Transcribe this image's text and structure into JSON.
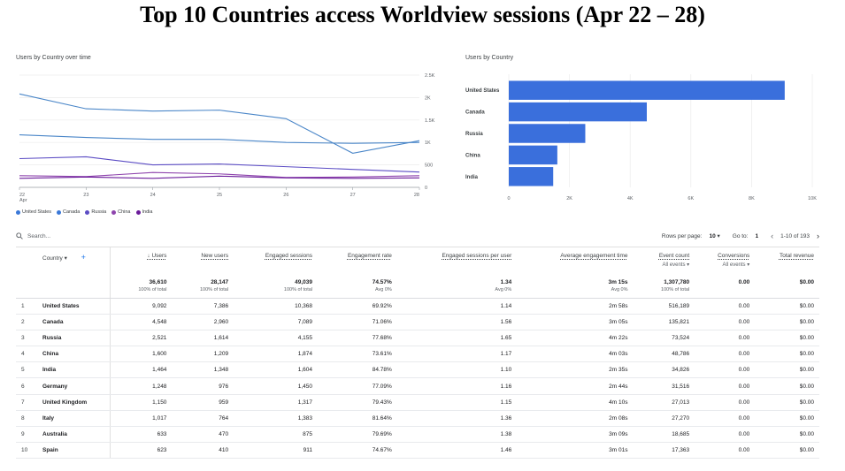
{
  "title": "Top 10 Countries access Worldview sessions (Apr 22 – 28)",
  "line_chart_title": "Users by Country over time",
  "bar_chart_title": "Users by Country",
  "chart_data": [
    {
      "type": "line",
      "x": [
        "22",
        "23",
        "24",
        "25",
        "26",
        "27",
        "28"
      ],
      "x_sublabel": "Apr",
      "y_ticks": [
        "2.5K",
        "2K",
        "1.5K",
        "1K",
        "500",
        "0"
      ],
      "ylim": [
        0,
        2500
      ],
      "grid": true,
      "legend": "bottom-left",
      "series": [
        {
          "name": "United States",
          "color": "#4a86c8",
          "values": [
            2080,
            1750,
            1700,
            1720,
            1530,
            760,
            1040
          ]
        },
        {
          "name": "Canada",
          "color": "#4a86c8",
          "values": [
            1170,
            1110,
            1070,
            1070,
            1000,
            980,
            1000
          ]
        },
        {
          "name": "Russia",
          "color": "#5b4cc4",
          "values": [
            640,
            680,
            500,
            520,
            460,
            400,
            340
          ]
        },
        {
          "name": "China",
          "color": "#8e44ad",
          "values": [
            260,
            240,
            330,
            300,
            220,
            230,
            260
          ]
        },
        {
          "name": "India",
          "color": "#6a1b9a",
          "values": [
            200,
            230,
            200,
            250,
            210,
            200,
            210
          ]
        }
      ]
    },
    {
      "type": "bar",
      "orientation": "horizontal",
      "categories": [
        "United States",
        "Canada",
        "Russia",
        "China",
        "India"
      ],
      "values": [
        9092,
        4548,
        2521,
        1600,
        1464
      ],
      "x_ticks": [
        "0",
        "2K",
        "4K",
        "6K",
        "8K",
        "10K"
      ],
      "xlim": [
        0,
        10000
      ],
      "color": "#3a6fdc"
    }
  ],
  "legend": [
    {
      "name": "United States",
      "color": "#3a78d8"
    },
    {
      "name": "Canada",
      "color": "#3a78d8"
    },
    {
      "name": "Russia",
      "color": "#5b4cc4"
    },
    {
      "name": "China",
      "color": "#8e44ad"
    },
    {
      "name": "India",
      "color": "#6a1b9a"
    }
  ],
  "toolbar": {
    "search_placeholder": "Search...",
    "rows_per_page_label": "Rows per page:",
    "rows_per_page_value": "10",
    "goto_label": "Go to:",
    "goto_value": "1",
    "range_label": "1-10 of 193"
  },
  "table": {
    "dimension_header": "Country",
    "headers": [
      {
        "label": "↓ Users",
        "sub": ""
      },
      {
        "label": "New users",
        "sub": ""
      },
      {
        "label": "Engaged sessions",
        "sub": ""
      },
      {
        "label": "Engagement rate",
        "sub": ""
      },
      {
        "label": "Engaged sessions per user",
        "sub": ""
      },
      {
        "label": "Average engagement time",
        "sub": ""
      },
      {
        "label": "Event count",
        "sub": "All events ▾"
      },
      {
        "label": "Conversions",
        "sub": "All events ▾"
      },
      {
        "label": "Total revenue",
        "sub": ""
      }
    ],
    "totals": [
      {
        "value": "36,610",
        "pct": "100% of total"
      },
      {
        "value": "28,147",
        "pct": "100% of total"
      },
      {
        "value": "49,039",
        "pct": "100% of total"
      },
      {
        "value": "74.57%",
        "pct": "Avg 0%"
      },
      {
        "value": "1.34",
        "pct": "Avg 0%"
      },
      {
        "value": "3m 15s",
        "pct": "Avg 0%"
      },
      {
        "value": "1,307,780",
        "pct": "100% of total"
      },
      {
        "value": "0.00",
        "pct": ""
      },
      {
        "value": "$0.00",
        "pct": ""
      }
    ],
    "rows": [
      {
        "idx": "1",
        "country": "United States",
        "cells": [
          "9,092",
          "7,386",
          "10,368",
          "69.92%",
          "1.14",
          "2m 58s",
          "516,189",
          "0.00",
          "$0.00"
        ]
      },
      {
        "idx": "2",
        "country": "Canada",
        "cells": [
          "4,548",
          "2,960",
          "7,089",
          "71.06%",
          "1.56",
          "3m 05s",
          "135,821",
          "0.00",
          "$0.00"
        ]
      },
      {
        "idx": "3",
        "country": "Russia",
        "cells": [
          "2,521",
          "1,614",
          "4,155",
          "77.68%",
          "1.65",
          "4m 22s",
          "73,524",
          "0.00",
          "$0.00"
        ]
      },
      {
        "idx": "4",
        "country": "China",
        "cells": [
          "1,600",
          "1,209",
          "1,874",
          "73.61%",
          "1.17",
          "4m 03s",
          "48,786",
          "0.00",
          "$0.00"
        ]
      },
      {
        "idx": "5",
        "country": "India",
        "cells": [
          "1,464",
          "1,348",
          "1,604",
          "84.78%",
          "1.10",
          "2m 35s",
          "34,826",
          "0.00",
          "$0.00"
        ]
      },
      {
        "idx": "6",
        "country": "Germany",
        "cells": [
          "1,248",
          "976",
          "1,450",
          "77.09%",
          "1.16",
          "2m 44s",
          "31,516",
          "0.00",
          "$0.00"
        ]
      },
      {
        "idx": "7",
        "country": "United Kingdom",
        "cells": [
          "1,150",
          "959",
          "1,317",
          "79.43%",
          "1.15",
          "4m 10s",
          "27,013",
          "0.00",
          "$0.00"
        ]
      },
      {
        "idx": "8",
        "country": "Italy",
        "cells": [
          "1,017",
          "764",
          "1,383",
          "81.64%",
          "1.36",
          "2m 08s",
          "27,270",
          "0.00",
          "$0.00"
        ]
      },
      {
        "idx": "9",
        "country": "Australia",
        "cells": [
          "633",
          "470",
          "875",
          "79.69%",
          "1.38",
          "3m 09s",
          "18,685",
          "0.00",
          "$0.00"
        ]
      },
      {
        "idx": "10",
        "country": "Spain",
        "cells": [
          "623",
          "410",
          "911",
          "74.67%",
          "1.46",
          "3m 01s",
          "17,363",
          "0.00",
          "$0.00"
        ]
      }
    ]
  }
}
